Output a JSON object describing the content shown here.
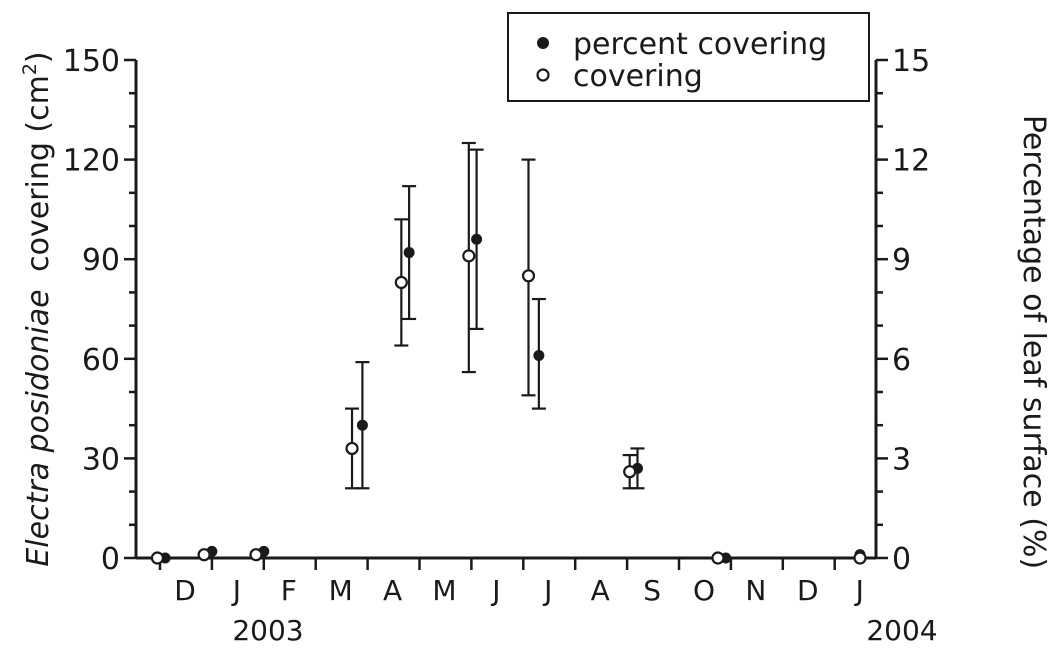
{
  "chart_data": {
    "type": "scatter",
    "y_left": {
      "label_italic": "Electra posidoniae",
      "label_rest": "covering (cm",
      "label_sup": "2",
      "label_close": ")",
      "ticks": [
        0,
        30,
        60,
        90,
        120,
        150
      ],
      "ylim": [
        0,
        150
      ]
    },
    "y_right": {
      "label": "Percentage of leaf surface (%)",
      "ticks": [
        0,
        3,
        6,
        9,
        12,
        15
      ],
      "ylim": [
        0,
        15
      ]
    },
    "x": {
      "months": [
        "D",
        "J",
        "F",
        "M",
        "A",
        "M",
        "J",
        "J",
        "A",
        "S",
        "O",
        "N",
        "D",
        "J"
      ],
      "years": [
        "2003",
        "2004"
      ],
      "xlim": [
        0,
        14
      ]
    },
    "legend": {
      "position": "top-right",
      "entries": [
        {
          "label": "percent covering",
          "marker": "filled-circle"
        },
        {
          "label": "covering",
          "marker": "open-circle"
        }
      ]
    },
    "series": [
      {
        "name": "percent covering",
        "axis": "right",
        "marker": "filled",
        "points": [
          {
            "x": 0.1,
            "y": 0.0,
            "err": [
              0.0,
              0.0
            ]
          },
          {
            "x": 1.0,
            "y": 0.2,
            "err": [
              0.0,
              0.0
            ]
          },
          {
            "x": 2.0,
            "y": 0.2,
            "err": [
              0.0,
              0.0
            ]
          },
          {
            "x": 3.9,
            "y": 4.0,
            "err": [
              2.1,
              5.9
            ]
          },
          {
            "x": 4.8,
            "y": 9.2,
            "err": [
              7.2,
              11.2
            ]
          },
          {
            "x": 6.1,
            "y": 9.6,
            "err": [
              6.9,
              12.3
            ]
          },
          {
            "x": 7.3,
            "y": 6.1,
            "err": [
              4.5,
              7.8
            ]
          },
          {
            "x": 9.2,
            "y": 2.7,
            "err": [
              2.1,
              3.3
            ]
          },
          {
            "x": 10.9,
            "y": 0.0,
            "err": [
              0.0,
              0.0
            ]
          },
          {
            "x": 14.3,
            "y": 0.1,
            "err": [
              0.0,
              0.0
            ]
          }
        ]
      },
      {
        "name": "covering",
        "axis": "left",
        "marker": "open",
        "points": [
          {
            "x": -0.05,
            "y": 0,
            "err": [
              0,
              0
            ]
          },
          {
            "x": 0.85,
            "y": 1,
            "err": [
              0,
              0
            ]
          },
          {
            "x": 1.85,
            "y": 1,
            "err": [
              0,
              0
            ]
          },
          {
            "x": 3.7,
            "y": 33,
            "err": [
              21,
              45
            ]
          },
          {
            "x": 4.65,
            "y": 83,
            "err": [
              64,
              102
            ]
          },
          {
            "x": 5.95,
            "y": 91,
            "err": [
              56,
              125
            ]
          },
          {
            "x": 7.1,
            "y": 85,
            "err": [
              49,
              120
            ]
          },
          {
            "x": 9.05,
            "y": 26,
            "err": [
              21,
              31
            ]
          },
          {
            "x": 10.75,
            "y": 0,
            "err": [
              0,
              0
            ]
          },
          {
            "x": 14.15,
            "y": 0,
            "err": [
              0,
              0
            ]
          }
        ]
      }
    ]
  }
}
